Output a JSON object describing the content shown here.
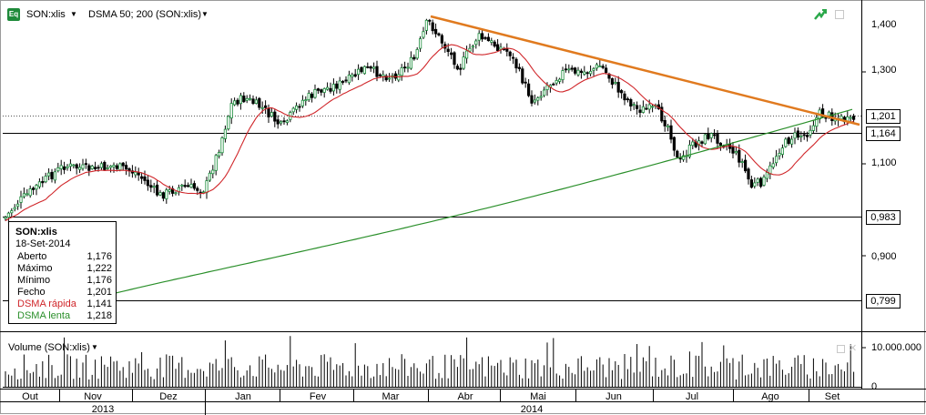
{
  "toolbar": {
    "symbol": "SON:xlis",
    "indicator": "DSMA 50; 200 (SON:xlis)",
    "eq_badge": "Eq"
  },
  "price_axis": {
    "ticks": [
      "1,400",
      "1,300",
      "1,200",
      "1,100",
      "1,000",
      "0,900",
      "0,800"
    ],
    "tags": {
      "last": "1,201",
      "support": "1,164",
      "level_low": "0,983",
      "level_bottom": "0,799"
    }
  },
  "info": {
    "symbol": "SON:xlis",
    "date": "18-Set-2014",
    "rows": [
      {
        "label": "Aberto",
        "value": "1,176"
      },
      {
        "label": "Máximo",
        "value": "1,222"
      },
      {
        "label": "Mínimo",
        "value": "1,176"
      },
      {
        "label": "Fecho",
        "value": "1,201"
      },
      {
        "label": "DSMA rápida",
        "value": "1,141"
      },
      {
        "label": "DSMA lenta",
        "value": "1,218"
      }
    ]
  },
  "volume": {
    "title": "Volume (SON:xlis)",
    "ticks": [
      "10.000.000",
      "0"
    ]
  },
  "time_axis": {
    "months": [
      "Out",
      "Nov",
      "Dez",
      "Jan",
      "Fev",
      "Mar",
      "Abr",
      "Mai",
      "Jun",
      "Jul",
      "Ago",
      "Set"
    ],
    "years": [
      "2013",
      "2014"
    ]
  },
  "colors": {
    "up": "#1a8c3b",
    "down": "#000000",
    "fast_ma": "#d0262a",
    "slow_ma": "#2a8f2a",
    "trendline": "#e07a1f",
    "info_fast": "#d0262a",
    "info_slow": "#2a8f2a"
  }
}
